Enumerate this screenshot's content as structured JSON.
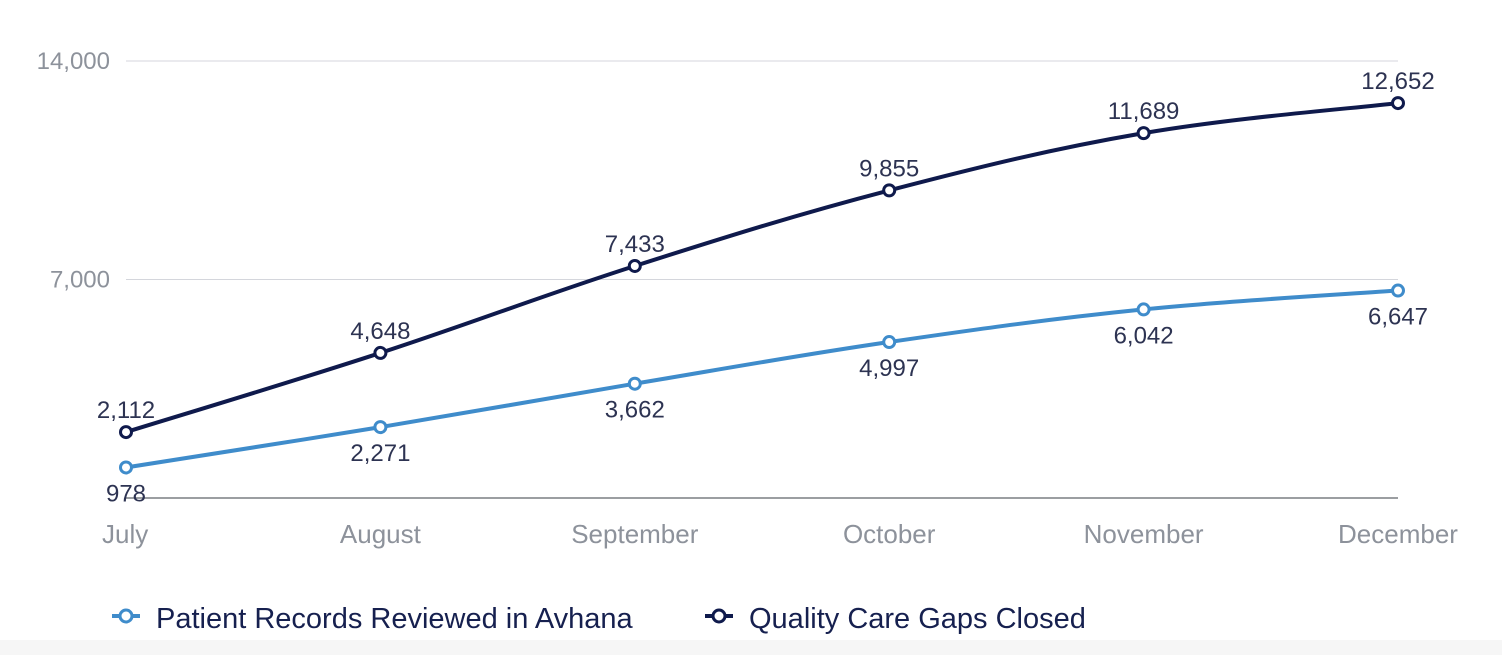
{
  "chart_data": {
    "type": "line",
    "categories": [
      "July",
      "August",
      "September",
      "October",
      "November",
      "December"
    ],
    "ylim": [
      0,
      14000
    ],
    "yticks": [
      {
        "value": 7000,
        "label": "7,000"
      },
      {
        "value": 14000,
        "label": "14,000"
      }
    ],
    "grid": true,
    "legend": "bottom-left",
    "series": [
      {
        "name": "Patient Records Reviewed in Avhana",
        "color": "#3f8ccb",
        "values": [
          978,
          2271,
          3662,
          4997,
          6042,
          6647
        ],
        "labels": [
          "978",
          "2,271",
          "3,662",
          "4,997",
          "6,042",
          "6,647"
        ],
        "label_position": "below"
      },
      {
        "name": "Quality Care Gaps Closed",
        "color": "#0f1a4c",
        "values": [
          2112,
          4648,
          7433,
          9855,
          11689,
          12652
        ],
        "labels": [
          "2,112",
          "4,648",
          "7,433",
          "9,855",
          "11,689",
          "12,652"
        ],
        "label_position": "above"
      }
    ]
  }
}
